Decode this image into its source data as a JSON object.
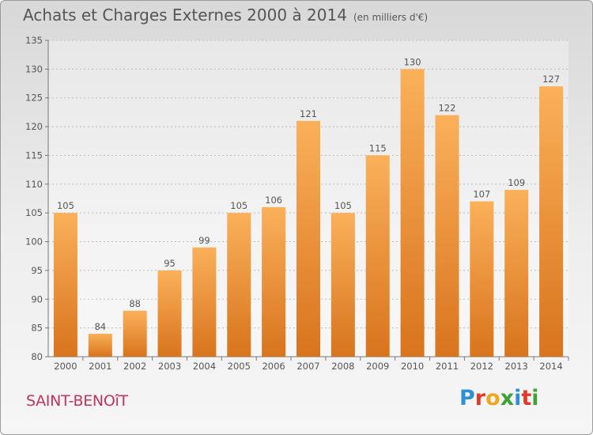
{
  "header": {
    "title": "Achats et Charges Externes 2000 à 2014",
    "subtitle": "(en milliers d'€)"
  },
  "footer": {
    "town": "SAINT-BENOîT",
    "logo": "Proxiti"
  },
  "colors": {
    "bar_light": "#fbb05a",
    "bar_dark": "#d8741d",
    "grid": "#bbbbbb",
    "text": "#555555",
    "town": "#c0335a"
  },
  "chart_data": {
    "type": "bar",
    "categories": [
      "2000",
      "2001",
      "2002",
      "2003",
      "2004",
      "2005",
      "2006",
      "2007",
      "2008",
      "2009",
      "2010",
      "2011",
      "2012",
      "2013",
      "2014"
    ],
    "values": [
      105,
      84,
      88,
      95,
      99,
      105,
      106,
      121,
      105,
      115,
      130,
      122,
      107,
      109,
      127
    ],
    "title": "Achats et Charges Externes 2000 à 2014",
    "ylim": [
      80,
      135
    ],
    "yticks": [
      80,
      85,
      90,
      95,
      100,
      105,
      110,
      115,
      120,
      125,
      130,
      135
    ],
    "grid": true
  }
}
